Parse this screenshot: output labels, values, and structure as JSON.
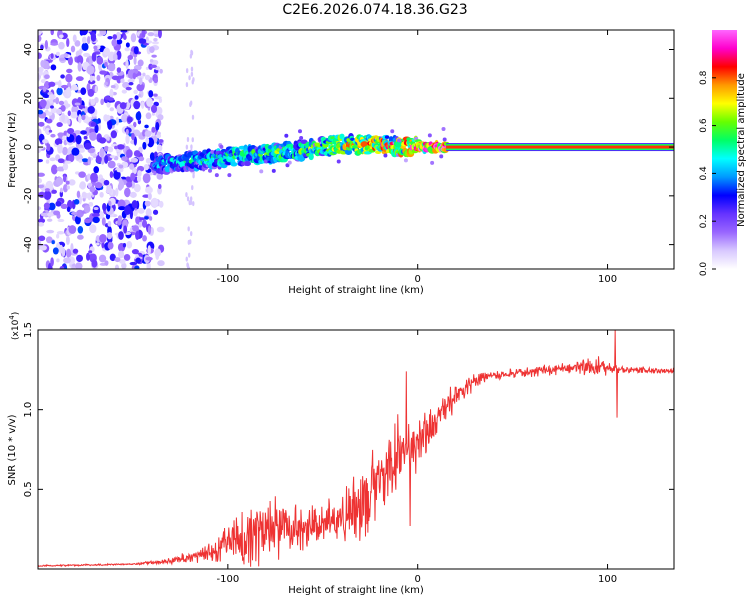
{
  "title": "C2E6.2026.074.18.36.G23",
  "chart_data": [
    {
      "type": "heatmap",
      "name": "spectrogram",
      "xlabel": "Height of straight line (km)",
      "ylabel": "Frequency (Hz)",
      "xlim": [
        -200,
        135
      ],
      "ylim": [
        -50,
        48
      ],
      "xticks": [
        -100,
        0,
        100
      ],
      "yticks": [
        -40,
        -20,
        0,
        20,
        40
      ],
      "xticklabels": [
        "-100",
        "0",
        "100"
      ],
      "yticklabels": [
        "-40",
        "-20",
        "0",
        "20",
        "40"
      ],
      "colorbar": {
        "label": "Normalized spectral amplitude",
        "range": [
          0,
          1
        ],
        "ticks": [
          0.0,
          0.2,
          0.4,
          0.6,
          0.8
        ],
        "ticklabels": [
          "0.0",
          "0.2",
          "0.4",
          "0.6",
          "0.8"
        ],
        "colors": [
          "#ffffff",
          "#d8c8ff",
          "#9966ff",
          "#6633ff",
          "#0000ff",
          "#0099ff",
          "#00ffff",
          "#00ff66",
          "#66ff00",
          "#ffff00",
          "#ff9900",
          "#ff0000",
          "#ff00cc",
          "#ff66ff"
        ]
      },
      "noise_region_x": [
        -200,
        -135
      ],
      "ridge": [
        {
          "x": -140,
          "freq": -7,
          "amp": 0.45
        },
        {
          "x": -120,
          "freq": -6,
          "amp": 0.5
        },
        {
          "x": -100,
          "freq": -4,
          "amp": 0.55
        },
        {
          "x": -80,
          "freq": -3,
          "amp": 0.6
        },
        {
          "x": -60,
          "freq": -1,
          "amp": 0.6
        },
        {
          "x": -40,
          "freq": 1,
          "amp": 0.7
        },
        {
          "x": -20,
          "freq": 1,
          "amp": 0.8
        },
        {
          "x": 0,
          "freq": 0,
          "amp": 0.9
        },
        {
          "x": 15,
          "freq": 0,
          "amp": 1.0
        },
        {
          "x": 135,
          "freq": 0,
          "amp": 1.0
        }
      ],
      "carrier_line": {
        "freq": 0,
        "x_range": [
          15,
          135
        ]
      }
    },
    {
      "type": "line",
      "name": "snr",
      "xlabel": "Height of straight line (km)",
      "ylabel": "SNR (10 * v/v)",
      "scale_label": "(x10",
      "scale_exponent": "4",
      "scale_suffix": ")",
      "xlim": [
        -200,
        135
      ],
      "ylim": [
        0,
        1.5
      ],
      "xticks": [
        -100,
        0,
        100
      ],
      "yticks": [
        0.5,
        1.0,
        1.5
      ],
      "xticklabels": [
        "-100",
        "0",
        "100"
      ],
      "yticklabels": [
        "0.5",
        "1.0",
        "1.5"
      ],
      "color": "#ee3333",
      "envelope": [
        {
          "x": -200,
          "y": 0.02,
          "noise": 0.005
        },
        {
          "x": -150,
          "y": 0.03,
          "noise": 0.005
        },
        {
          "x": -130,
          "y": 0.05,
          "noise": 0.02
        },
        {
          "x": -110,
          "y": 0.1,
          "noise": 0.05
        },
        {
          "x": -90,
          "y": 0.2,
          "noise": 0.2
        },
        {
          "x": -80,
          "y": 0.25,
          "noise": 0.2
        },
        {
          "x": -60,
          "y": 0.25,
          "noise": 0.12
        },
        {
          "x": -40,
          "y": 0.32,
          "noise": 0.15
        },
        {
          "x": -30,
          "y": 0.4,
          "noise": 0.22
        },
        {
          "x": -20,
          "y": 0.58,
          "noise": 0.22
        },
        {
          "x": -10,
          "y": 0.75,
          "noise": 0.2
        },
        {
          "x": 0,
          "y": 0.78,
          "noise": 0.18
        },
        {
          "x": 10,
          "y": 0.95,
          "noise": 0.12
        },
        {
          "x": 20,
          "y": 1.08,
          "noise": 0.08
        },
        {
          "x": 30,
          "y": 1.18,
          "noise": 0.05
        },
        {
          "x": 40,
          "y": 1.22,
          "noise": 0.03
        },
        {
          "x": 60,
          "y": 1.24,
          "noise": 0.03
        },
        {
          "x": 80,
          "y": 1.26,
          "noise": 0.04
        },
        {
          "x": 95,
          "y": 1.27,
          "noise": 0.06
        },
        {
          "x": 110,
          "y": 1.25,
          "noise": 0.02
        },
        {
          "x": 135,
          "y": 1.24,
          "noise": 0.02
        }
      ],
      "spikes": [
        {
          "x": -6,
          "y": 1.24
        },
        {
          "x": -4,
          "y": 0.27
        },
        {
          "x": 104,
          "y": 1.5
        },
        {
          "x": 105,
          "y": 0.95
        }
      ]
    }
  ]
}
